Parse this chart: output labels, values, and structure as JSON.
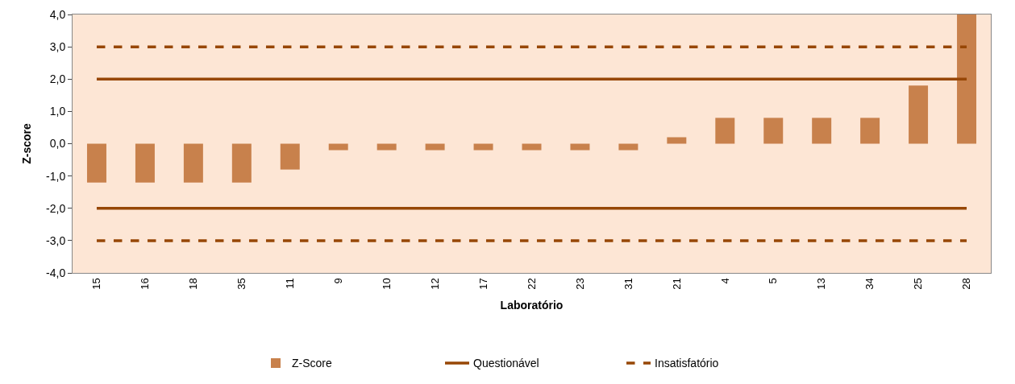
{
  "chart_data": {
    "type": "bar",
    "xlabel": "Laboratório",
    "ylabel": "Z-score",
    "categories": [
      "15",
      "16",
      "18",
      "35",
      "11",
      "9",
      "10",
      "12",
      "17",
      "22",
      "23",
      "31",
      "21",
      "4",
      "5",
      "13",
      "34",
      "25",
      "28"
    ],
    "series": [
      {
        "name": "Z-Score",
        "color": "#c8814c",
        "values": [
          -1.2,
          -1.2,
          -1.2,
          -1.2,
          -0.8,
          -0.2,
          -0.2,
          -0.2,
          -0.2,
          -0.2,
          -0.2,
          -0.2,
          0.2,
          0.8,
          0.8,
          0.8,
          0.8,
          1.8,
          4.0
        ]
      },
      {
        "name": "Questionável",
        "type": "line",
        "line_style": "solid",
        "color": "#974706",
        "values": [
          2,
          2,
          2,
          2,
          2,
          2,
          2,
          2,
          2,
          2,
          2,
          2,
          2,
          2,
          2,
          2,
          2,
          2,
          2
        ]
      },
      {
        "type": "line",
        "line_style": "solid",
        "color": "#974706",
        "values": [
          -2,
          -2,
          -2,
          -2,
          -2,
          -2,
          -2,
          -2,
          -2,
          -2,
          -2,
          -2,
          -2,
          -2,
          -2,
          -2,
          -2,
          -2,
          -2
        ]
      },
      {
        "name": "Insatisfatório",
        "type": "line",
        "line_style": "dashed",
        "color": "#974706",
        "values": [
          3,
          3,
          3,
          3,
          3,
          3,
          3,
          3,
          3,
          3,
          3,
          3,
          3,
          3,
          3,
          3,
          3,
          3,
          3
        ]
      },
      {
        "type": "line",
        "line_style": "dashed",
        "color": "#974706",
        "values": [
          -3,
          -3,
          -3,
          -3,
          -3,
          -3,
          -3,
          -3,
          -3,
          -3,
          -3,
          -3,
          -3,
          -3,
          -3,
          -3,
          -3,
          -3,
          -3
        ]
      }
    ],
    "ylim": [
      -4,
      4
    ],
    "yticks": [
      {
        "value": -4,
        "label": "-4,0"
      },
      {
        "value": -3,
        "label": "-3,0"
      },
      {
        "value": -2,
        "label": "-2,0"
      },
      {
        "value": -1,
        "label": "-1,0"
      },
      {
        "value": 0,
        "label": "0,0"
      },
      {
        "value": 1,
        "label": "1,0"
      },
      {
        "value": 2,
        "label": "2,0"
      },
      {
        "value": 3,
        "label": "3,0"
      },
      {
        "value": 4,
        "label": "4,0"
      }
    ],
    "grid": false,
    "legend": "bottom",
    "marker": "none"
  }
}
